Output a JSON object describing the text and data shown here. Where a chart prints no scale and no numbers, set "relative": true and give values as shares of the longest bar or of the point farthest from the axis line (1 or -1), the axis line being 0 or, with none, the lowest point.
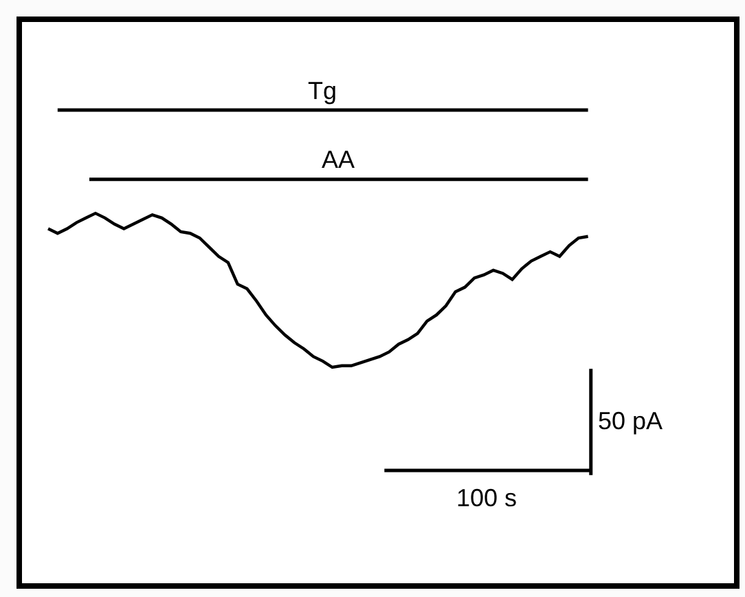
{
  "chart_data": {
    "type": "line",
    "relative": true,
    "categories": [
      null,
      null,
      null,
      null,
      null,
      null,
      null,
      null,
      null,
      null,
      null,
      null,
      null,
      null,
      null,
      null,
      null,
      null,
      null,
      null,
      null,
      null,
      null,
      null,
      null,
      null,
      null,
      null,
      null,
      null,
      null,
      null,
      null,
      null,
      null,
      null,
      null,
      null,
      null,
      null,
      null,
      null,
      null,
      null,
      null,
      null,
      null,
      null,
      null,
      null,
      null,
      null,
      null,
      null,
      null,
      null,
      null,
      null
    ],
    "series": [
      {
        "color": "#000000",
        "values": [
          0.9,
          0.87,
          0.9,
          0.94,
          0.97,
          1.0,
          0.97,
          0.93,
          0.9,
          0.93,
          0.96,
          0.99,
          0.97,
          0.93,
          0.88,
          0.87,
          0.84,
          0.78,
          0.72,
          0.68,
          0.54,
          0.51,
          0.43,
          0.34,
          0.27,
          0.21,
          0.16,
          0.12,
          0.07,
          0.04,
          0.0,
          0.01,
          0.01,
          0.03,
          0.05,
          0.07,
          0.1,
          0.15,
          0.18,
          0.22,
          0.3,
          0.34,
          0.4,
          0.49,
          0.52,
          0.58,
          0.6,
          0.63,
          0.61,
          0.57,
          0.64,
          0.69,
          0.72,
          0.75,
          0.72,
          0.79,
          0.84,
          0.85
        ]
      }
    ],
    "annotations": [
      "Tg",
      "AA",
      "50 pA",
      "100 s"
    ],
    "marker": "none",
    "line_style": "solid"
  }
}
